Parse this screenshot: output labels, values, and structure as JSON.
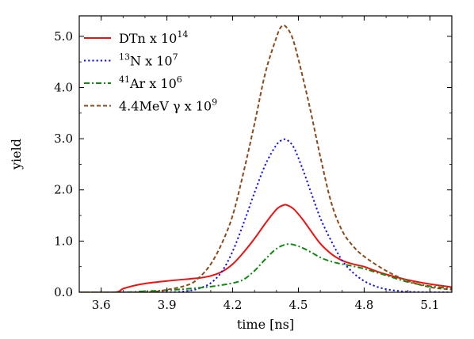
{
  "chart_data": {
    "type": "line",
    "title": "",
    "xlabel": "time [ns]",
    "ylabel": "yield",
    "xlim": [
      3.5,
      5.2
    ],
    "ylim": [
      0,
      5.4
    ],
    "xticks": [
      3.6,
      3.9,
      4.2,
      4.5,
      4.8,
      5.1
    ],
    "xtick_labels": [
      "3.6",
      "3.9",
      "4.2",
      "4.5",
      "4.8",
      "5.1"
    ],
    "yticks": [
      0,
      1,
      2,
      3,
      4,
      5
    ],
    "ytick_labels": [
      "0.0",
      "1.0",
      "2.0",
      "3.0",
      "4.0",
      "5.0"
    ],
    "grid": false,
    "legend_position": "top-left",
    "series": [
      {
        "name": "DTn x 10^14",
        "legend": {
          "base": "DTn x 10",
          "sup": "14"
        },
        "color": "#ee1111",
        "style": "solid",
        "x": [
          3.5,
          3.66,
          3.7,
          3.75,
          3.8,
          3.9,
          4.0,
          4.05,
          4.1,
          4.15,
          4.2,
          4.25,
          4.3,
          4.35,
          4.4,
          4.43,
          4.45,
          4.48,
          4.52,
          4.56,
          4.6,
          4.65,
          4.7,
          4.75,
          4.8,
          4.85,
          4.9,
          5.0,
          5.1,
          5.2
        ],
        "y": [
          0.0,
          0.0,
          0.07,
          0.13,
          0.17,
          0.22,
          0.26,
          0.28,
          0.32,
          0.4,
          0.55,
          0.78,
          1.05,
          1.35,
          1.62,
          1.7,
          1.7,
          1.62,
          1.42,
          1.18,
          0.95,
          0.75,
          0.62,
          0.55,
          0.5,
          0.42,
          0.35,
          0.24,
          0.16,
          0.1
        ]
      },
      {
        "name": "13N x 10^7",
        "legend": {
          "pre": "13",
          "base": "N x 10",
          "sup": "7"
        },
        "color": "#1111ee",
        "style": "dotted",
        "x": [
          3.5,
          3.9,
          4.0,
          4.05,
          4.1,
          4.15,
          4.2,
          4.25,
          4.3,
          4.35,
          4.4,
          4.43,
          4.45,
          4.48,
          4.52,
          4.56,
          4.6,
          4.65,
          4.7,
          4.75,
          4.8,
          4.85,
          4.9,
          4.95,
          5.0,
          5.1,
          5.2
        ],
        "y": [
          0.0,
          0.0,
          0.03,
          0.08,
          0.18,
          0.4,
          0.8,
          1.35,
          1.95,
          2.5,
          2.88,
          2.98,
          2.97,
          2.82,
          2.4,
          1.92,
          1.45,
          1.0,
          0.62,
          0.38,
          0.22,
          0.12,
          0.06,
          0.03,
          0.01,
          0.0,
          0.0
        ]
      },
      {
        "name": "41Ar x 10^6",
        "legend": {
          "pre": "41",
          "base": "Ar x 10",
          "sup": "6"
        },
        "color": "#118811",
        "style": "dashdot",
        "x": [
          3.5,
          3.7,
          3.8,
          3.9,
          4.0,
          4.1,
          4.2,
          4.25,
          4.3,
          4.35,
          4.4,
          4.45,
          4.5,
          4.55,
          4.6,
          4.65,
          4.7,
          4.75,
          4.8,
          4.9,
          5.0,
          5.1,
          5.2
        ],
        "y": [
          0.0,
          0.0,
          0.02,
          0.04,
          0.07,
          0.11,
          0.18,
          0.25,
          0.42,
          0.65,
          0.85,
          0.94,
          0.9,
          0.8,
          0.68,
          0.6,
          0.55,
          0.51,
          0.46,
          0.33,
          0.2,
          0.12,
          0.07
        ]
      },
      {
        "name": "4.4MeV γ x 10^9",
        "legend": {
          "base": "4.4MeV γ x 10",
          "sup": "9"
        },
        "color": "#8b4a1a",
        "style": "dashed",
        "x": [
          3.5,
          3.8,
          3.9,
          4.0,
          4.05,
          4.1,
          4.15,
          4.2,
          4.25,
          4.3,
          4.35,
          4.4,
          4.42,
          4.44,
          4.47,
          4.5,
          4.55,
          4.6,
          4.65,
          4.7,
          4.75,
          4.8,
          4.9,
          5.0,
          5.1,
          5.2
        ],
        "y": [
          0.0,
          0.0,
          0.05,
          0.15,
          0.3,
          0.55,
          0.95,
          1.5,
          2.35,
          3.3,
          4.3,
          4.98,
          5.18,
          5.2,
          5.0,
          4.55,
          3.65,
          2.65,
          1.75,
          1.2,
          0.9,
          0.7,
          0.42,
          0.22,
          0.1,
          0.05
        ]
      }
    ]
  }
}
